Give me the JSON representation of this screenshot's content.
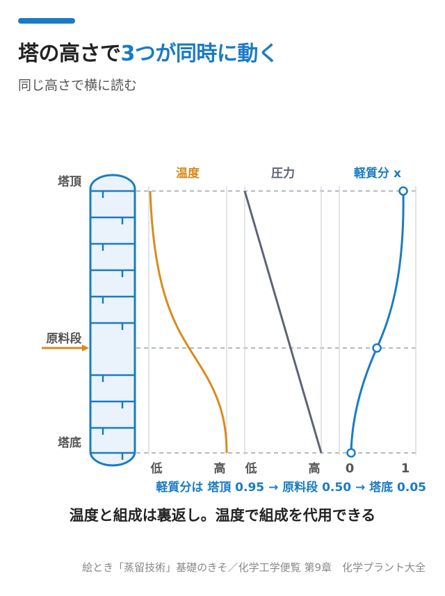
{
  "header": {
    "title_part1": "塔の高さで",
    "title_highlight": "3つが同時に動く",
    "subtitle": "同じ高さで横に読む"
  },
  "column": {
    "top_label": "塔頂",
    "feed_label": "原料段",
    "bottom_label": "塔底"
  },
  "panels": {
    "temperature": {
      "title": "温度",
      "low_label": "低",
      "high_label": "高"
    },
    "pressure": {
      "title": "圧力",
      "low_label": "低",
      "high_label": "高"
    },
    "composition": {
      "title": "軽質分 x",
      "low_label": "0",
      "high_label": "1"
    }
  },
  "chart_data": {
    "type": "line",
    "y_axis": [
      "塔底",
      "原料段",
      "塔頂"
    ],
    "composition_points": {
      "塔頂": 0.95,
      "原料段": 0.5,
      "塔底": 0.05
    },
    "composition_note": "軽質分は 塔頂 0.95 → 原料段 0.50 → 塔底 0.05"
  },
  "summary": "温度と組成は裏返し。温度で組成を代用できる",
  "footer": "絵とき「蒸留技術」基礎のきそ／化学工学便覧 第9章　化学プラント大全",
  "colors": {
    "accent": "#1a7bc4",
    "temperature": "#d98a1c",
    "pressure": "#5b6475",
    "composition": "#1a7bc4",
    "feed_arrow": "#d98a1c"
  }
}
